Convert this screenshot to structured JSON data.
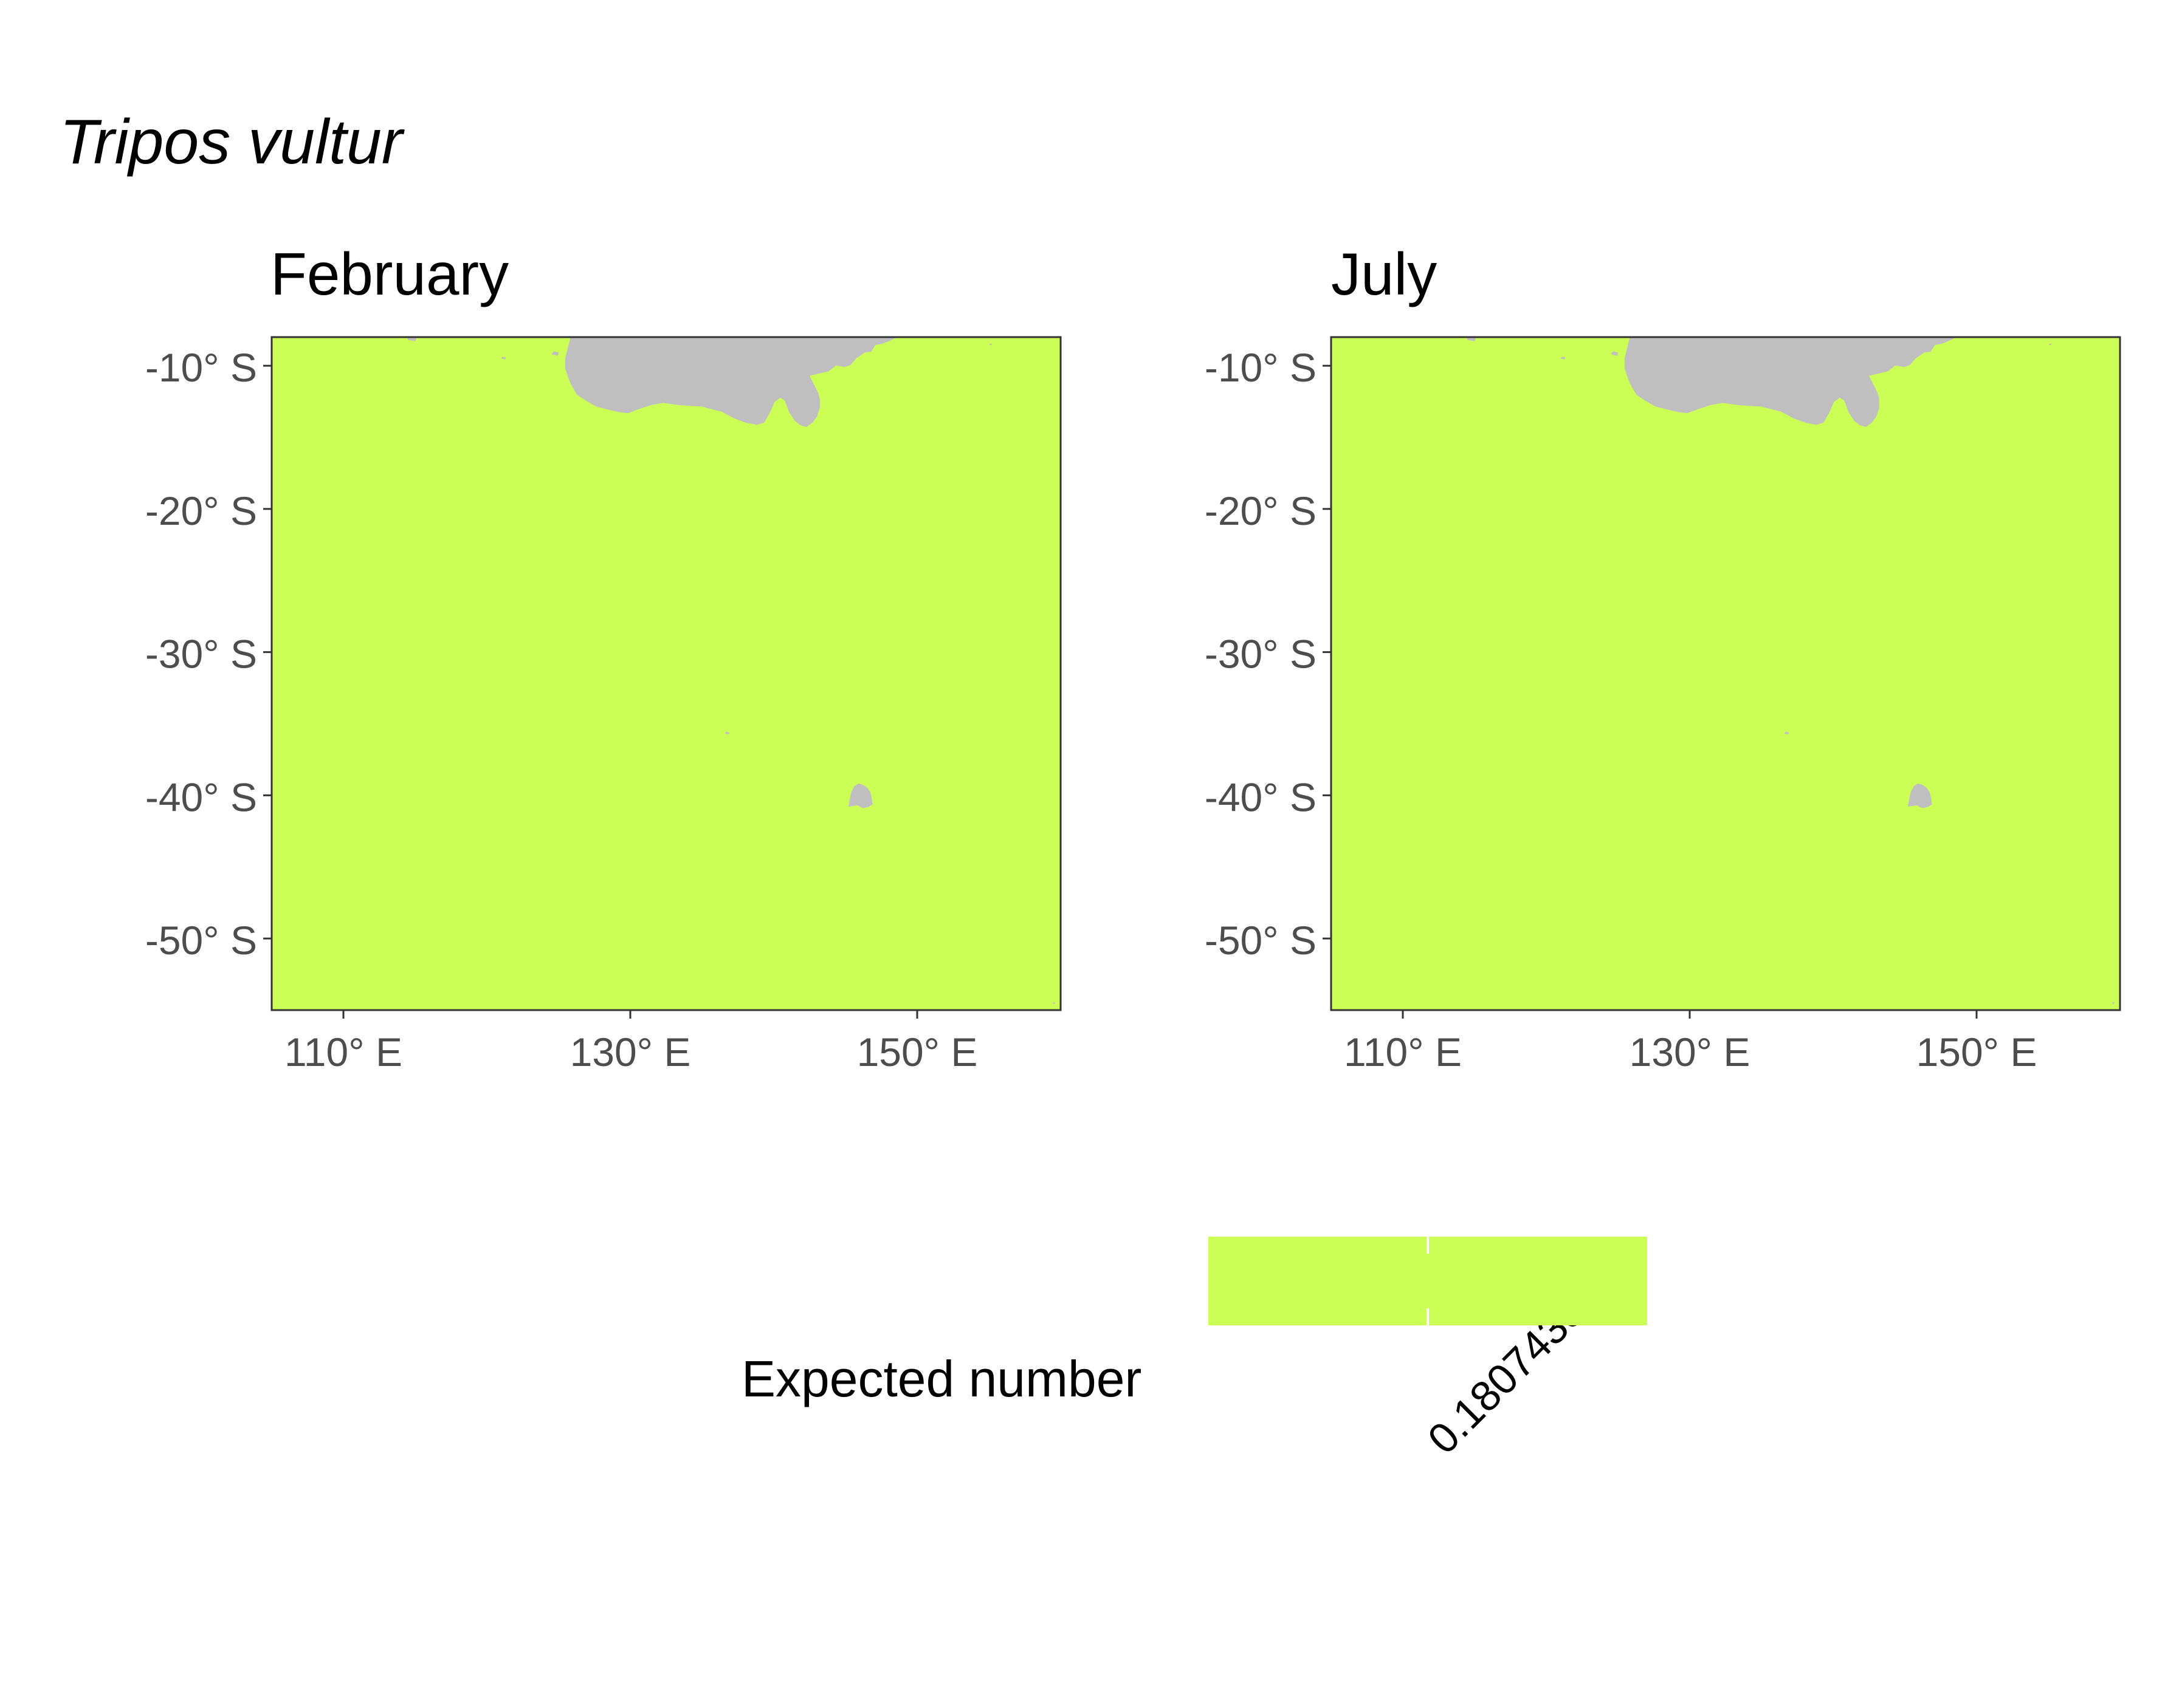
{
  "title": "Tripos vultur",
  "colors": {
    "ocean": "#ccff55",
    "land": "#bfbfbf",
    "frame": "#333333",
    "axis_text": "#4d4d4d"
  },
  "chart_data": {
    "type": "map",
    "region": "Australia",
    "xlim": [
      105,
      160
    ],
    "ylim": [
      -55,
      -8
    ],
    "x_ticks": [
      110,
      130,
      150
    ],
    "y_ticks": [
      -10,
      -20,
      -30,
      -40,
      -50
    ],
    "x_tick_labels": [
      "110° E",
      "130° E",
      "150° E"
    ],
    "y_tick_labels": [
      "-10° S",
      "-20° S",
      "-30° S",
      "-40° S",
      "-50° S"
    ],
    "panels": [
      {
        "title": "February",
        "expected_number": 0.1807433
      },
      {
        "title": "July",
        "expected_number": 0.1807433
      }
    ],
    "legend": {
      "title": "Expected number",
      "tick_label": "0.1807433",
      "position": "bottom"
    }
  }
}
